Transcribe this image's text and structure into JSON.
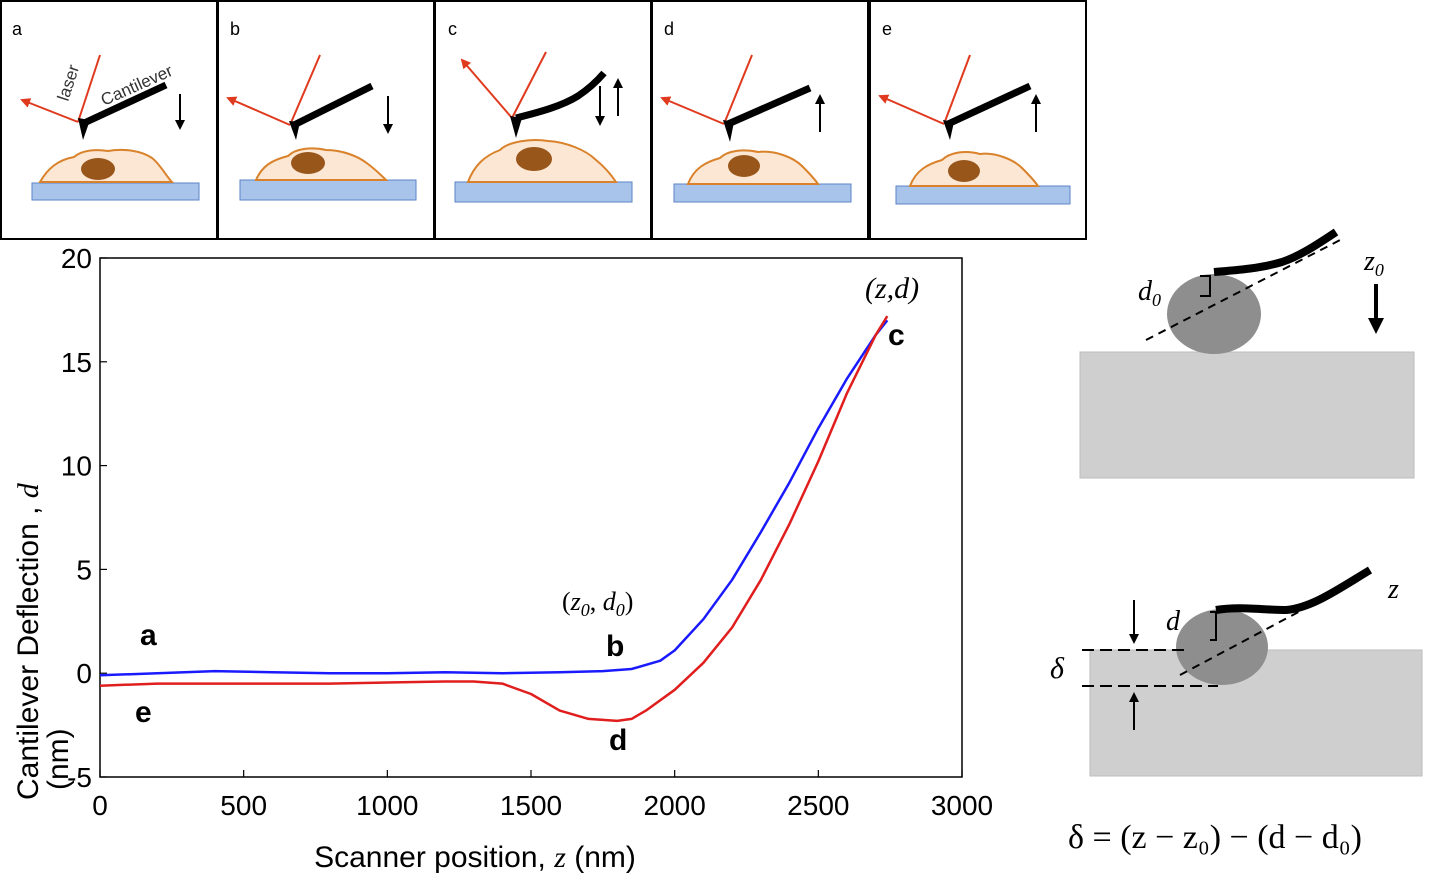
{
  "panels": [
    {
      "letter": "a",
      "laser_label": "laser",
      "cantilever_label": "Cantilever"
    },
    {
      "letter": "b"
    },
    {
      "letter": "c"
    },
    {
      "letter": "d"
    },
    {
      "letter": "e"
    }
  ],
  "chart_data": {
    "type": "line",
    "title": "",
    "xlabel_prefix": "Scanner position, ",
    "xlabel_var": "z",
    "xlabel_suffix": " (nm)",
    "ylabel_prefix": "Cantilever Deflection , ",
    "ylabel_var": "d",
    "ylabel_unit": "(nm)",
    "xlim": [
      0,
      3000
    ],
    "ylim": [
      -5,
      20
    ],
    "xticks": [
      "0",
      "500",
      "1000",
      "1500",
      "2000",
      "2500",
      "3000"
    ],
    "yticks": [
      "-5",
      "0",
      "5",
      "10",
      "15",
      "20"
    ],
    "legend": "none",
    "series": [
      {
        "color": "#1a1aff",
        "x": [
          0,
          200,
          400,
          600,
          800,
          1000,
          1200,
          1400,
          1600,
          1750,
          1850,
          1950,
          2000,
          2100,
          2200,
          2300,
          2400,
          2500,
          2600,
          2700,
          2740
        ],
        "y": [
          -0.1,
          0.0,
          0.1,
          0.05,
          0.0,
          0.0,
          0.05,
          0.0,
          0.05,
          0.1,
          0.2,
          0.6,
          1.1,
          2.6,
          4.5,
          6.8,
          9.2,
          11.8,
          14.2,
          16.3,
          17.0
        ]
      },
      {
        "color": "#e01e1e",
        "x": [
          0,
          200,
          400,
          600,
          800,
          1000,
          1200,
          1300,
          1400,
          1500,
          1600,
          1700,
          1800,
          1850,
          1900,
          2000,
          2100,
          2200,
          2300,
          2400,
          2500,
          2600,
          2700,
          2740
        ],
        "y": [
          -0.6,
          -0.5,
          -0.5,
          -0.5,
          -0.5,
          -0.45,
          -0.4,
          -0.4,
          -0.5,
          -1.0,
          -1.8,
          -2.2,
          -2.3,
          -2.2,
          -1.8,
          -0.8,
          0.5,
          2.2,
          4.5,
          7.2,
          10.2,
          13.5,
          16.3,
          17.2
        ]
      }
    ],
    "annotations": {
      "a": "a",
      "b": "b",
      "c": "c",
      "d": "d",
      "e": "e",
      "zd": "(z,d)",
      "z0d0_open": "(",
      "z0_z": "z",
      "z0_sub": "0",
      "z0d0_comma": ", ",
      "d0_d": "d",
      "d0_sub": "0",
      "z0d0_close": ")"
    }
  },
  "schematic": {
    "top": {
      "d0_main": "d",
      "d0_sub": "0",
      "z0_main": "z",
      "z0_sub": "0"
    },
    "bottom": {
      "d_label": "d",
      "z_label": "z",
      "delta_label": "δ"
    },
    "equation": "δ = (z − z₀) − (d − d₀)"
  }
}
